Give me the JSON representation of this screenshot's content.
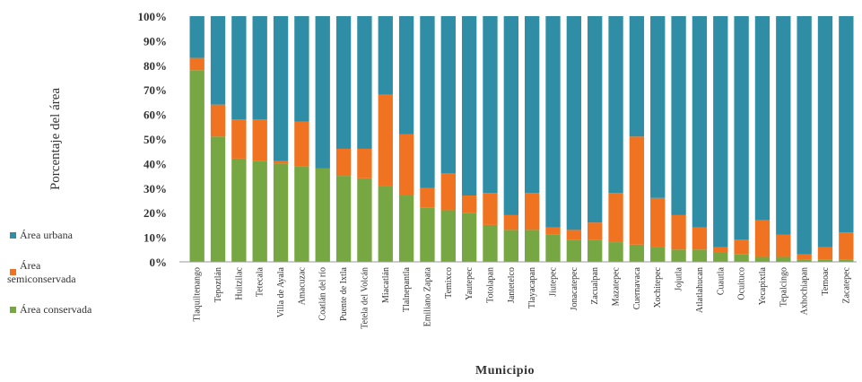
{
  "chart_data": {
    "type": "bar",
    "stacked": true,
    "ylabel": "Porcentaje del área",
    "xlabel": "Municipio",
    "ylim": [
      0,
      100
    ],
    "yticks": [
      "0%",
      "10%",
      "20%",
      "30%",
      "40%",
      "50%",
      "60%",
      "70%",
      "80%",
      "90%",
      "100%"
    ],
    "grid": false,
    "legend_position": "left",
    "categories": [
      "Tlaquiltenango",
      "Tepoztlán",
      "Huitzilac",
      "Tetecala",
      "Villa de Ayala",
      "Amacuzac",
      "Coatlán del río",
      "Puente de Ixtla",
      "Tetela del Volcán",
      "Miacatlán",
      "Tlalnepantla",
      "Emiliano Zapata",
      "Temixco",
      "Yautepec",
      "Totolapan",
      "Jantetelco",
      "Tlayacapan",
      "Jiutepec",
      "Jonacatepec",
      "Zacualpan",
      "Mazatepec",
      "Cuernavaca",
      "Xochitepec",
      "Jojutla",
      "Atlatlahucan",
      "Cuautla",
      "Ocuituco",
      "Yecapixtla",
      "Tepalcingo",
      "Axhochiapan",
      "Temoac",
      "Zacatepec"
    ],
    "series": [
      {
        "name": "Área conservada",
        "color": "#77a743",
        "values": [
          78,
          51,
          42,
          41,
          40,
          39,
          38,
          35,
          34,
          31,
          27,
          22,
          21,
          20,
          15,
          13,
          13,
          11,
          9,
          9,
          8,
          7,
          6,
          5,
          5,
          4,
          3,
          2,
          2,
          1,
          1,
          1
        ]
      },
      {
        "name": "Área semiconservada",
        "color": "#ef7320",
        "values": [
          5,
          13,
          16,
          17,
          1,
          18,
          0,
          11,
          12,
          37,
          25,
          8,
          15,
          7,
          13,
          6,
          15,
          3,
          4,
          7,
          20,
          44,
          20,
          14,
          9,
          2,
          6,
          15,
          9,
          2,
          5,
          11
        ]
      },
      {
        "name": "Área urbana",
        "color": "#2f8ea6",
        "values": [
          17,
          36,
          42,
          42,
          59,
          43,
          62,
          54,
          54,
          32,
          48,
          70,
          64,
          73,
          72,
          81,
          72,
          86,
          87,
          84,
          72,
          49,
          74,
          81,
          86,
          94,
          91,
          83,
          89,
          97,
          94,
          88
        ]
      }
    ]
  }
}
